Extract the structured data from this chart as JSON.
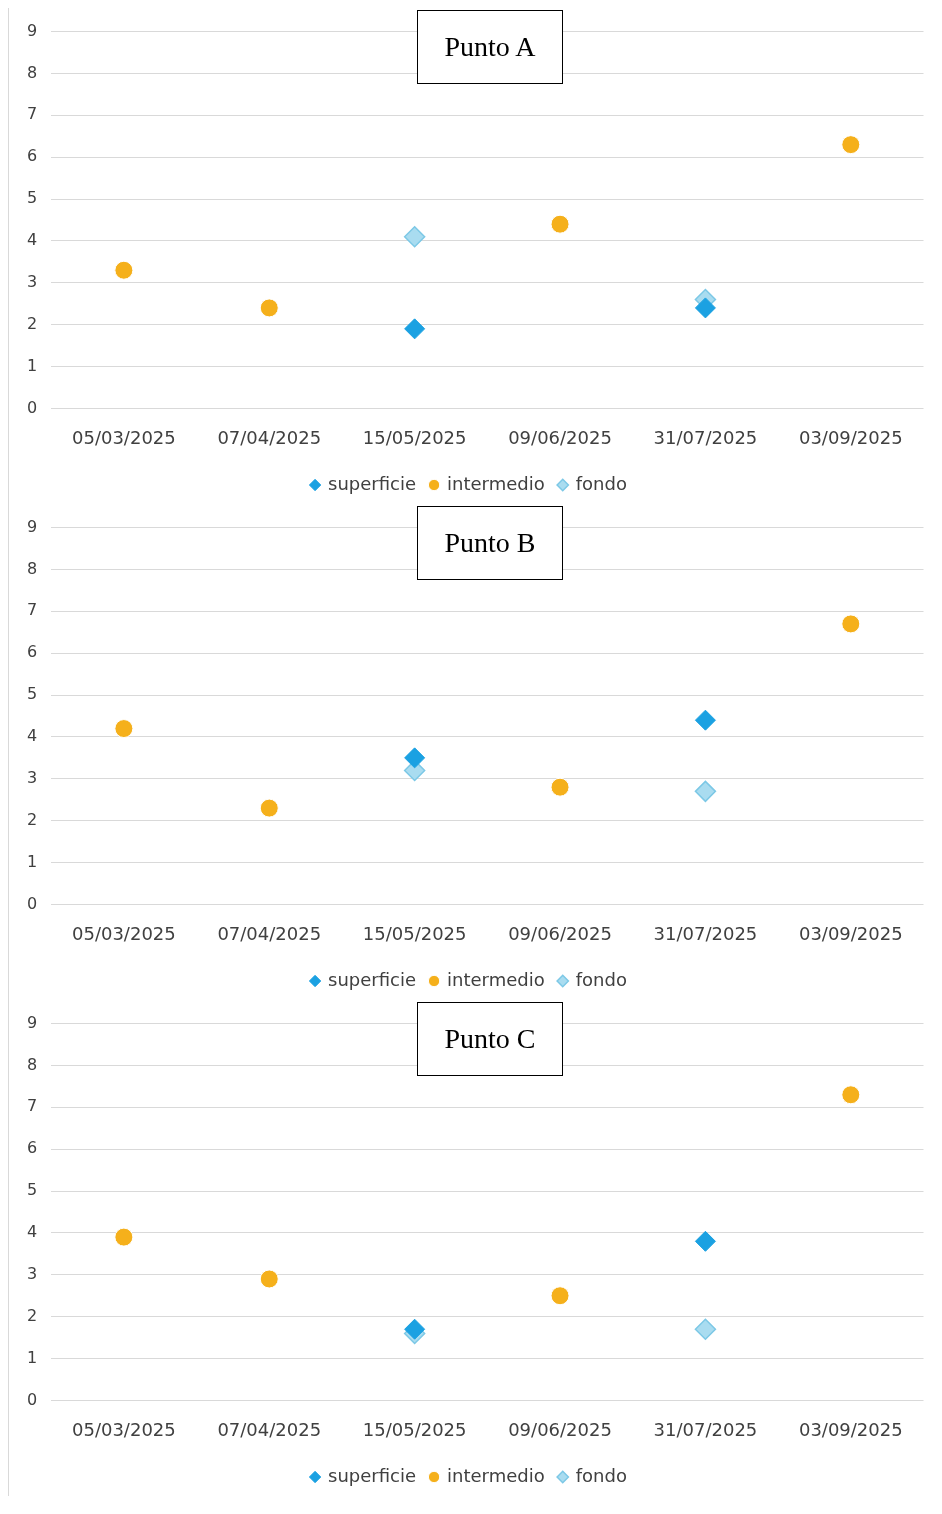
{
  "chart_data": [
    {
      "type": "scatter",
      "title": "Punto A",
      "categories": [
        "05/03/2025",
        "07/04/2025",
        "15/05/2025",
        "09/06/2025",
        "31/07/2025",
        "03/09/2025"
      ],
      "series": [
        {
          "name": "superficie",
          "color": "#1ba1e2",
          "marker": "diamond",
          "values": [
            null,
            null,
            1.9,
            null,
            2.4,
            null
          ]
        },
        {
          "name": "intermedio",
          "color": "#f5b01b",
          "marker": "circle",
          "values": [
            3.3,
            2.4,
            null,
            4.4,
            null,
            6.3
          ]
        },
        {
          "name": "fondo",
          "color": "#a9dcf0",
          "marker": "diamond",
          "values": [
            null,
            null,
            4.1,
            null,
            2.6,
            null
          ]
        }
      ],
      "ylim": [
        0,
        9
      ],
      "yticks": [
        0,
        1,
        2,
        3,
        4,
        5,
        6,
        7,
        8,
        9
      ],
      "grid": "y",
      "legend": "bottom"
    },
    {
      "type": "scatter",
      "title": "Punto B",
      "categories": [
        "05/03/2025",
        "07/04/2025",
        "15/05/2025",
        "09/06/2025",
        "31/07/2025",
        "03/09/2025"
      ],
      "series": [
        {
          "name": "superficie",
          "color": "#1ba1e2",
          "marker": "diamond",
          "values": [
            null,
            null,
            3.5,
            null,
            4.4,
            null
          ]
        },
        {
          "name": "intermedio",
          "color": "#f5b01b",
          "marker": "circle",
          "values": [
            4.2,
            2.3,
            null,
            2.8,
            null,
            6.7
          ]
        },
        {
          "name": "fondo",
          "color": "#a9dcf0",
          "marker": "diamond",
          "values": [
            null,
            null,
            3.2,
            null,
            2.7,
            null
          ]
        }
      ],
      "ylim": [
        0,
        9
      ],
      "yticks": [
        0,
        1,
        2,
        3,
        4,
        5,
        6,
        7,
        8,
        9
      ],
      "grid": "y",
      "legend": "bottom"
    },
    {
      "type": "scatter",
      "title": "Punto C",
      "categories": [
        "05/03/2025",
        "07/04/2025",
        "15/05/2025",
        "09/06/2025",
        "31/07/2025",
        "03/09/2025"
      ],
      "series": [
        {
          "name": "superficie",
          "color": "#1ba1e2",
          "marker": "diamond",
          "values": [
            null,
            null,
            1.7,
            null,
            3.8,
            null
          ]
        },
        {
          "name": "intermedio",
          "color": "#f5b01b",
          "marker": "circle",
          "values": [
            3.9,
            2.9,
            null,
            2.5,
            null,
            7.3
          ]
        },
        {
          "name": "fondo",
          "color": "#a9dcf0",
          "marker": "diamond",
          "values": [
            null,
            null,
            1.6,
            null,
            1.7,
            null
          ]
        }
      ],
      "ylim": [
        0,
        9
      ],
      "yticks": [
        0,
        1,
        2,
        3,
        4,
        5,
        6,
        7,
        8,
        9
      ],
      "grid": "y",
      "legend": "bottom"
    }
  ]
}
